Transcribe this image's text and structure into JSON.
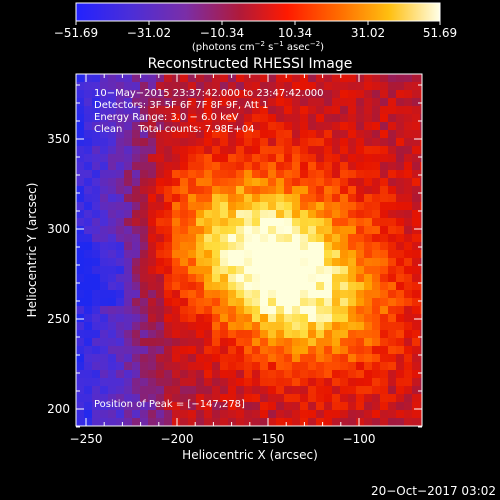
{
  "colorbar": {
    "ticks": [
      "−51.69",
      "−31.02",
      "−10.34",
      "10.34",
      "31.02",
      "51.69"
    ],
    "units_prefix": "(photons cm",
    "units_exp1": "−2",
    "units_mid1": " s",
    "units_exp2": "−1",
    "units_mid2": " asec",
    "units_exp3": "−2",
    "units_suffix": ")"
  },
  "image": {
    "title": "Reconstructed RHESSI Image",
    "time_range": "10−May−2015 23:37:42.000 to 23:47:42.000",
    "detectors": "Detectors: 3F 5F 6F 7F 8F 9F, Att 1",
    "energy_range": "Energy Range: 3.0 − 6.0 keV",
    "algorithm_counts": "Clean     Total counts: 7.98E+04",
    "peak_label": "Position of Peak = [−147,278]",
    "xlabel": "Heliocentric X (arcsec)",
    "ylabel": "Heliocentric Y (arcsec)",
    "xticks": [
      "−250",
      "−200",
      "−150",
      "−100"
    ],
    "yticks": [
      "200",
      "250",
      "300",
      "350"
    ],
    "timestamp": "20−Oct−2017 03:02"
  },
  "colors": {
    "background": "#000000",
    "text": "#ffffff",
    "colormap": [
      "#1a1aff",
      "#4b2ed8",
      "#7a3aa8",
      "#b0182c",
      "#ff2200",
      "#ff6a00",
      "#ffb000",
      "#ffe07a",
      "#ffffd6"
    ]
  }
}
